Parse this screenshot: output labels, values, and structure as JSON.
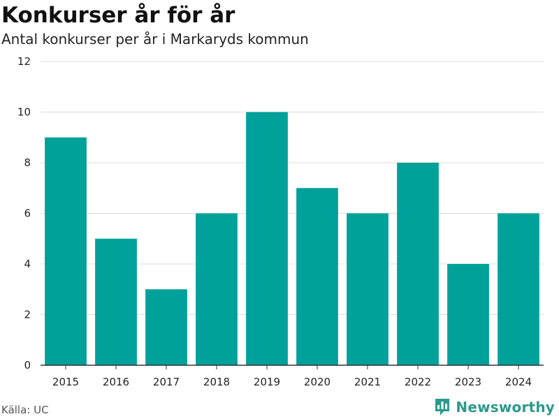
{
  "header": {
    "title": "Konkurser år för år",
    "subtitle": "Antal konkurser per år i Markaryds kommun"
  },
  "footer": {
    "source": "Källa: UC",
    "brand": "Newsworthy",
    "brand_icon": "bar-chart-pin-icon"
  },
  "colors": {
    "bar": "#00a19a",
    "grid": "#dcdcdc",
    "axis": "#333333",
    "brand": "#2b9a8d"
  },
  "chart_data": {
    "type": "bar",
    "categories": [
      "2015",
      "2016",
      "2017",
      "2018",
      "2019",
      "2020",
      "2021",
      "2022",
      "2023",
      "2024"
    ],
    "values": [
      9,
      5,
      3,
      6,
      10,
      7,
      6,
      8,
      4,
      6
    ],
    "ylim": [
      0,
      12
    ],
    "yticks": [
      0,
      2,
      4,
      6,
      8,
      10,
      12
    ],
    "xlabel": "",
    "ylabel": "",
    "grid": true
  }
}
